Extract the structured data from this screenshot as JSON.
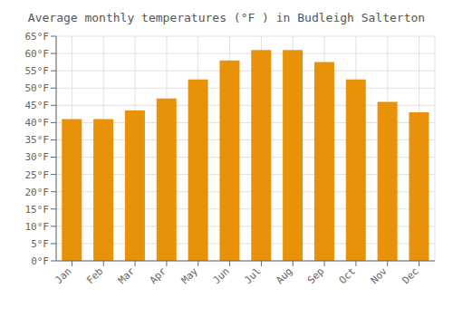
{
  "chart_data": {
    "type": "bar",
    "title": "Average monthly temperatures (°F ) in Budleigh Salterton",
    "categories": [
      "Jan",
      "Feb",
      "Mar",
      "Apr",
      "May",
      "Jun",
      "Jul",
      "Aug",
      "Sep",
      "Oct",
      "Nov",
      "Dec"
    ],
    "values": [
      41,
      41,
      43.5,
      47,
      52.5,
      58,
      61,
      61,
      57.5,
      52.5,
      46,
      43
    ],
    "color": "#E8920A",
    "ylim": [
      0,
      65
    ],
    "yticks": [
      {
        "value": 0,
        "label": "0°F"
      },
      {
        "value": 5,
        "label": "5°F"
      },
      {
        "value": 10,
        "label": "10°F"
      },
      {
        "value": 15,
        "label": "15°F"
      },
      {
        "value": 20,
        "label": "20°F"
      },
      {
        "value": 25,
        "label": "25°F"
      },
      {
        "value": 30,
        "label": "30°F"
      },
      {
        "value": 35,
        "label": "35°F"
      },
      {
        "value": 40,
        "label": "40°F"
      },
      {
        "value": 45,
        "label": "45°F"
      },
      {
        "value": 50,
        "label": "50°F"
      },
      {
        "value": 55,
        "label": "55°F"
      },
      {
        "value": 60,
        "label": "60°F"
      },
      {
        "value": 65,
        "label": "65°F"
      }
    ],
    "grid": true
  }
}
